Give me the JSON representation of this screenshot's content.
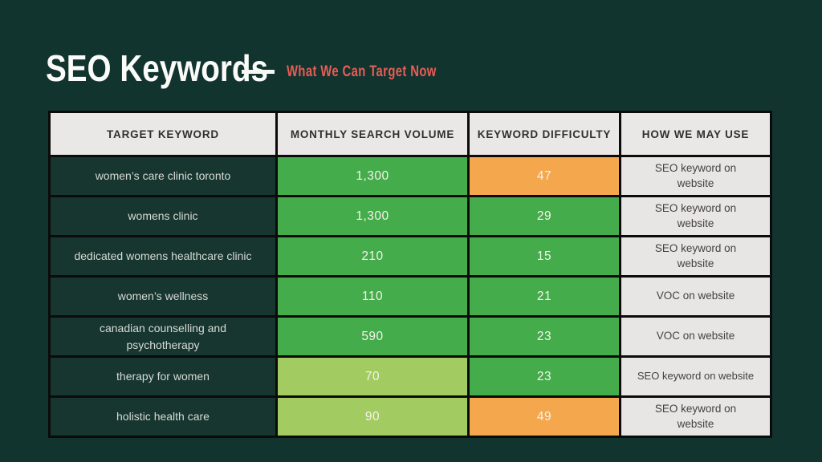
{
  "page": {
    "title": "SEO Keywords",
    "subtitle": "What We Can Target Now"
  },
  "colors": {
    "background": "#12342F",
    "green": "#45AC4C",
    "light_green": "#A2CC61",
    "orange": "#F4A74D",
    "header_bg": "#E9E8E6",
    "use_cell_bg": "#E7E6E4",
    "keyword_cell_bg": "#16362F",
    "accent_red": "#E95C55",
    "border_black": "#0B0B0B"
  },
  "table": {
    "headers": [
      "TARGET KEYWORD",
      "MONTHLY SEARCH VOLUME",
      "KEYWORD DIFFICULTY",
      "HOW WE MAY USE"
    ],
    "rows": [
      {
        "keyword": "women’s care clinic toronto",
        "volume": "1,300",
        "volume_color": "green",
        "difficulty": "47",
        "difficulty_color": "orange",
        "use": "SEO keyword on website"
      },
      {
        "keyword": "womens clinic",
        "volume": "1,300",
        "volume_color": "green",
        "difficulty": "29",
        "difficulty_color": "green",
        "use": "SEO keyword on website"
      },
      {
        "keyword": "dedicated womens healthcare clinic",
        "volume": "210",
        "volume_color": "green",
        "difficulty": "15",
        "difficulty_color": "green",
        "use": "SEO keyword on website"
      },
      {
        "keyword": "women’s wellness",
        "volume": "110",
        "volume_color": "green",
        "difficulty": "21",
        "difficulty_color": "green",
        "use": "VOC on website"
      },
      {
        "keyword": "canadian counselling and psychotherapy",
        "volume": "590",
        "volume_color": "green",
        "difficulty": "23",
        "difficulty_color": "green",
        "use": "VOC on website"
      },
      {
        "keyword": "therapy for women",
        "volume": "70",
        "volume_color": "light_green",
        "difficulty": "23",
        "difficulty_color": "green",
        "use": "SEO keyword on website"
      },
      {
        "keyword": "holistic health care",
        "volume": "90",
        "volume_color": "light_green",
        "difficulty": "49",
        "difficulty_color": "orange",
        "use": "SEO keyword on website"
      }
    ]
  },
  "chart_data": {
    "type": "table",
    "title": "SEO Keywords — What We Can Target Now",
    "columns": [
      "TARGET KEYWORD",
      "MONTHLY SEARCH VOLUME",
      "KEYWORD DIFFICULTY",
      "HOW WE MAY USE"
    ],
    "rows": [
      [
        "women’s care clinic toronto",
        1300,
        47,
        "SEO keyword on website"
      ],
      [
        "womens clinic",
        1300,
        29,
        "SEO keyword on website"
      ],
      [
        "dedicated womens healthcare clinic",
        210,
        15,
        "SEO keyword on website"
      ],
      [
        "women’s wellness",
        110,
        21,
        "VOC on website"
      ],
      [
        "canadian counselling and psychotherapy",
        590,
        23,
        "VOC on website"
      ],
      [
        "therapy for women",
        70,
        23,
        "SEO keyword on website"
      ],
      [
        "holistic health care",
        90,
        49,
        "SEO keyword on website"
      ]
    ],
    "cell_color_coding": {
      "volume_colors": [
        "green",
        "green",
        "green",
        "green",
        "green",
        "light_green",
        "light_green"
      ],
      "difficulty_colors": [
        "orange",
        "green",
        "green",
        "green",
        "green",
        "green",
        "orange"
      ]
    },
    "layout_hints": {
      "grid": "black cell borders",
      "legend_position": "none"
    }
  }
}
